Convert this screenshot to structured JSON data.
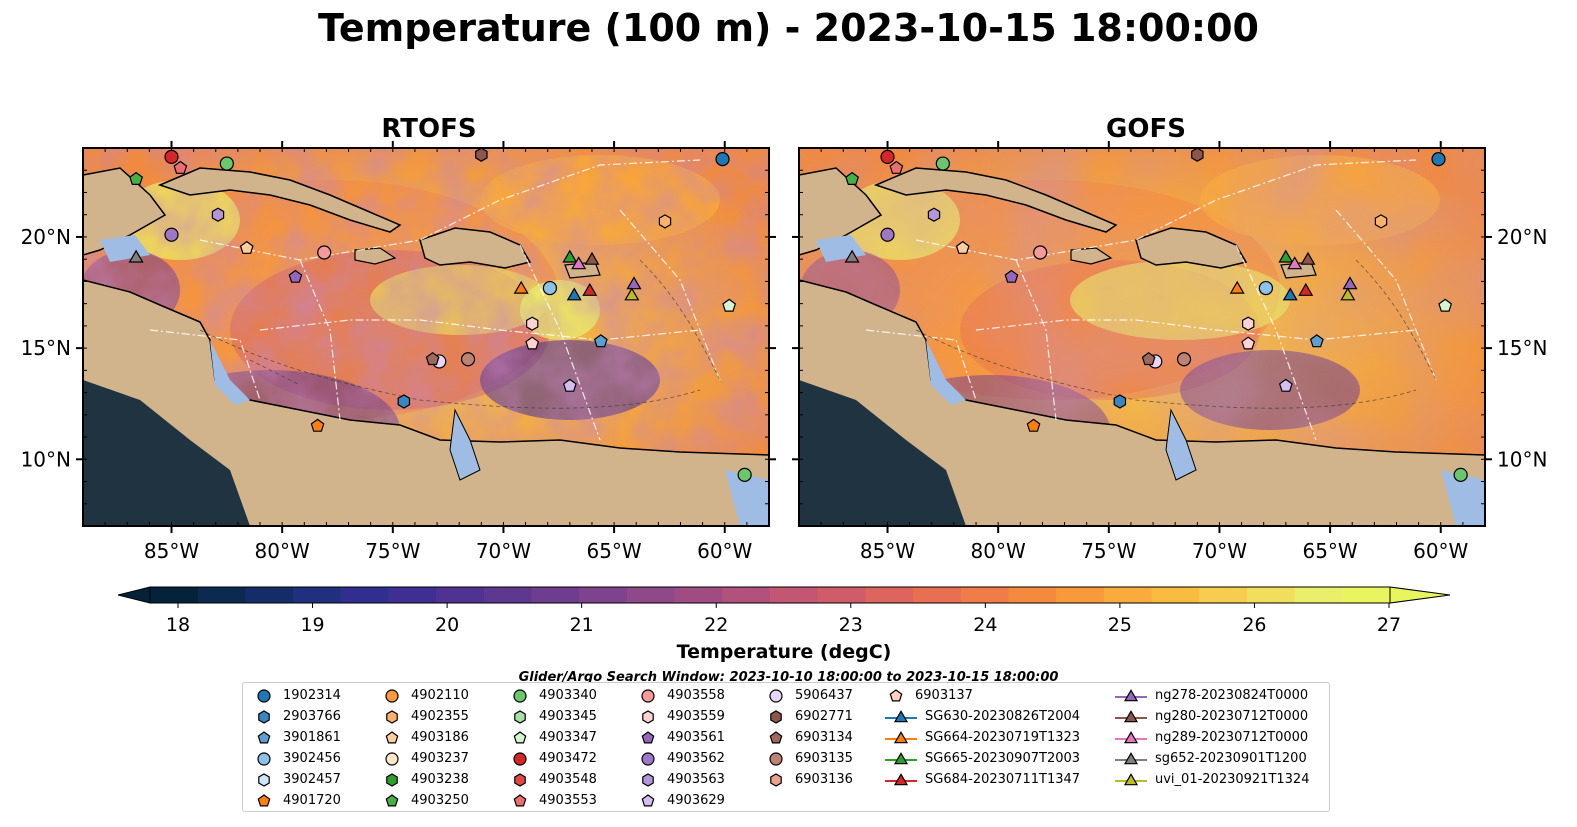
{
  "title": "Temperature (100 m) - 2023-10-15 18:00:00",
  "panels": [
    {
      "title": "RTOFS"
    },
    {
      "title": "GOFS"
    }
  ],
  "axes": {
    "lon_ticks": [
      "85°W",
      "80°W",
      "75°W",
      "70°W",
      "65°W",
      "60°W"
    ],
    "lat_ticks": [
      "20°N",
      "15°N",
      "10°N"
    ],
    "lon_range": [
      -89,
      -58
    ],
    "lat_range": [
      7,
      24
    ]
  },
  "colorbar": {
    "label": "Temperature (degC)",
    "ticks": [
      "18",
      "19",
      "20",
      "21",
      "22",
      "23",
      "24",
      "25",
      "26",
      "27"
    ],
    "range": [
      18,
      27
    ],
    "colors": [
      "#04223a",
      "#0c2a50",
      "#142d68",
      "#21307e",
      "#302e8e",
      "#3f2f93",
      "#4f3292",
      "#5e3790",
      "#6e3d8f",
      "#7e438c",
      "#8f4888",
      "#a04c82",
      "#b2517b",
      "#c25673",
      "#d15c69",
      "#de645e",
      "#e96f52",
      "#f07c47",
      "#f58a3f",
      "#f89a3a",
      "#f9ab3b",
      "#f9bc42",
      "#f6cd4e",
      "#f0de5c",
      "#e9ef6a",
      "#e9f55e"
    ]
  },
  "legend": {
    "title": "Glider/Argo Search Window: 2023-10-10 18:00:00 to 2023-10-15 18:00:00",
    "columns": [
      [
        {
          "label": "1902314",
          "marker": "circle",
          "color": "#1f77b4"
        },
        {
          "label": "2903766",
          "marker": "hexagon",
          "color": "#3a86c0"
        },
        {
          "label": "3901861",
          "marker": "pentagon",
          "color": "#5d9fd3"
        },
        {
          "label": "3902456",
          "marker": "circle",
          "color": "#8dc1ea"
        },
        {
          "label": "3902457",
          "marker": "hexagon",
          "color": "#cfe7f7"
        },
        {
          "label": "4901720",
          "marker": "pentagon",
          "color": "#ff7f0e"
        }
      ],
      [
        {
          "label": "4902110",
          "marker": "circle",
          "color": "#f99a3d"
        },
        {
          "label": "4902355",
          "marker": "hexagon",
          "color": "#fbb26a"
        },
        {
          "label": "4903186",
          "marker": "pentagon",
          "color": "#fdcf9c"
        },
        {
          "label": "4903237",
          "marker": "circle",
          "color": "#fde6cc"
        },
        {
          "label": "4903238",
          "marker": "hexagon",
          "color": "#2ca02c"
        },
        {
          "label": "4903250",
          "marker": "pentagon",
          "color": "#45b145"
        }
      ],
      [
        {
          "label": "4903340",
          "marker": "circle",
          "color": "#6cc76c"
        },
        {
          "label": "4903345",
          "marker": "hexagon",
          "color": "#a5e0a5"
        },
        {
          "label": "4903347",
          "marker": "pentagon",
          "color": "#d4f5d0"
        },
        {
          "label": "4903472",
          "marker": "circle",
          "color": "#d62728"
        },
        {
          "label": "4903548",
          "marker": "hexagon",
          "color": "#e04848"
        },
        {
          "label": "4903553",
          "marker": "pentagon",
          "color": "#ec6f70"
        }
      ],
      [
        {
          "label": "4903558",
          "marker": "circle",
          "color": "#f49a9a"
        },
        {
          "label": "4903559",
          "marker": "hexagon",
          "color": "#fcd2d2"
        },
        {
          "label": "4903561",
          "marker": "pentagon",
          "color": "#9467bd"
        },
        {
          "label": "4903562",
          "marker": "circle",
          "color": "#9e78c6"
        },
        {
          "label": "4903563",
          "marker": "hexagon",
          "color": "#b594d8"
        },
        {
          "label": "4903629",
          "marker": "pentagon",
          "color": "#d4bdf0"
        }
      ],
      [
        {
          "label": "5906437",
          "marker": "circle",
          "color": "#e7d6fa"
        },
        {
          "label": "6902771",
          "marker": "hexagon",
          "color": "#8c564b"
        },
        {
          "label": "6903134",
          "marker": "pentagon",
          "color": "#a0685c"
        },
        {
          "label": "6903135",
          "marker": "circle",
          "color": "#bc8273"
        },
        {
          "label": "6903136",
          "marker": "hexagon",
          "color": "#e7a38d"
        },
        {
          "label": ""
        }
      ],
      [
        {
          "label": "6903137",
          "marker": "pentagon",
          "color": "#fbd2c0"
        },
        {
          "label": "SG630-20230826T2004",
          "marker": "triangle",
          "color": "#1f77b4"
        },
        {
          "label": "SG664-20230719T1323",
          "marker": "triangle",
          "color": "#ff7f0e"
        },
        {
          "label": "SG665-20230907T2003",
          "marker": "triangle",
          "color": "#2ca02c"
        },
        {
          "label": "SG684-20230711T1347",
          "marker": "triangle",
          "color": "#d62728"
        },
        {
          "label": ""
        }
      ],
      [
        {
          "label": "ng278-20230824T0000",
          "marker": "triangle",
          "color": "#9467bd"
        },
        {
          "label": "ng280-20230712T0000",
          "marker": "triangle",
          "color": "#8c564b"
        },
        {
          "label": "ng289-20230712T0000",
          "marker": "triangle",
          "color": "#e377c2"
        },
        {
          "label": "sg652-20230901T1200",
          "marker": "triangle",
          "color": "#7f7f7f"
        },
        {
          "label": "uvi_01-20230921T1324",
          "marker": "triangle",
          "color": "#bcbd22"
        },
        {
          "label": ""
        }
      ]
    ]
  },
  "markers": [
    {
      "lon": -60.1,
      "lat": 23.5,
      "marker": "circle",
      "color": "#1f77b4"
    },
    {
      "lon": -74.5,
      "lat": 12.6,
      "marker": "hexagon",
      "color": "#3a86c0"
    },
    {
      "lon": -65.6,
      "lat": 15.3,
      "marker": "pentagon",
      "color": "#5d9fd3"
    },
    {
      "lon": -67.9,
      "lat": 17.7,
      "marker": "circle",
      "color": "#8dc1ea"
    },
    {
      "lon": -78.4,
      "lat": 11.5,
      "marker": "pentagon",
      "color": "#ff7f0e"
    },
    {
      "lon": -62.7,
      "lat": 20.7,
      "marker": "hexagon",
      "color": "#fbb26a"
    },
    {
      "lon": -81.6,
      "lat": 19.5,
      "marker": "pentagon",
      "color": "#fdcf9c"
    },
    {
      "lon": -86.6,
      "lat": 22.6,
      "marker": "pentagon",
      "color": "#45b145"
    },
    {
      "lon": -82.5,
      "lat": 23.3,
      "marker": "circle",
      "color": "#6cc76c"
    },
    {
      "lon": -59.1,
      "lat": 9.3,
      "marker": "circle",
      "color": "#6cc76c"
    },
    {
      "lon": -59.8,
      "lat": 16.9,
      "marker": "pentagon",
      "color": "#d4f5d0"
    },
    {
      "lon": -85.0,
      "lat": 23.6,
      "marker": "circle",
      "color": "#d62728"
    },
    {
      "lon": -84.6,
      "lat": 23.1,
      "marker": "pentagon",
      "color": "#ec6f70"
    },
    {
      "lon": -78.1,
      "lat": 19.3,
      "marker": "circle",
      "color": "#f49a9a"
    },
    {
      "lon": -68.7,
      "lat": 16.1,
      "marker": "hexagon",
      "color": "#fcd2d2"
    },
    {
      "lon": -68.7,
      "lat": 15.2,
      "marker": "pentagon",
      "color": "#fcd2d2"
    },
    {
      "lon": -79.4,
      "lat": 18.2,
      "marker": "pentagon",
      "color": "#9467bd"
    },
    {
      "lon": -85.0,
      "lat": 20.1,
      "marker": "circle",
      "color": "#9e78c6"
    },
    {
      "lon": -82.9,
      "lat": 21.0,
      "marker": "hexagon",
      "color": "#b594d8"
    },
    {
      "lon": -67.0,
      "lat": 13.3,
      "marker": "pentagon",
      "color": "#d4bdf0"
    },
    {
      "lon": -72.9,
      "lat": 14.4,
      "marker": "circle",
      "color": "#e7d6fa"
    },
    {
      "lon": -73.2,
      "lat": 14.5,
      "marker": "pentagon",
      "color": "#a0685c"
    },
    {
      "lon": -71.6,
      "lat": 14.5,
      "marker": "circle",
      "color": "#bc8273"
    },
    {
      "lon": -71.0,
      "lat": 23.7,
      "marker": "hexagon",
      "color": "#8c564b"
    },
    {
      "lon": -66.8,
      "lat": 17.4,
      "marker": "triangle",
      "color": "#1f77b4"
    },
    {
      "lon": -69.2,
      "lat": 17.7,
      "marker": "triangle",
      "color": "#ff7f0e"
    },
    {
      "lon": -67.0,
      "lat": 19.1,
      "marker": "triangle",
      "color": "#2ca02c"
    },
    {
      "lon": -66.1,
      "lat": 17.6,
      "marker": "triangle",
      "color": "#d62728"
    },
    {
      "lon": -66.0,
      "lat": 19.0,
      "marker": "triangle",
      "color": "#8c564b"
    },
    {
      "lon": -66.6,
      "lat": 18.8,
      "marker": "triangle",
      "color": "#e377c2"
    },
    {
      "lon": -64.1,
      "lat": 17.9,
      "marker": "triangle",
      "color": "#9467bd"
    },
    {
      "lon": -86.6,
      "lat": 19.1,
      "marker": "triangle",
      "color": "#7f7f7f"
    },
    {
      "lon": -64.2,
      "lat": 17.4,
      "marker": "triangle",
      "color": "#bcbd22"
    }
  ]
}
